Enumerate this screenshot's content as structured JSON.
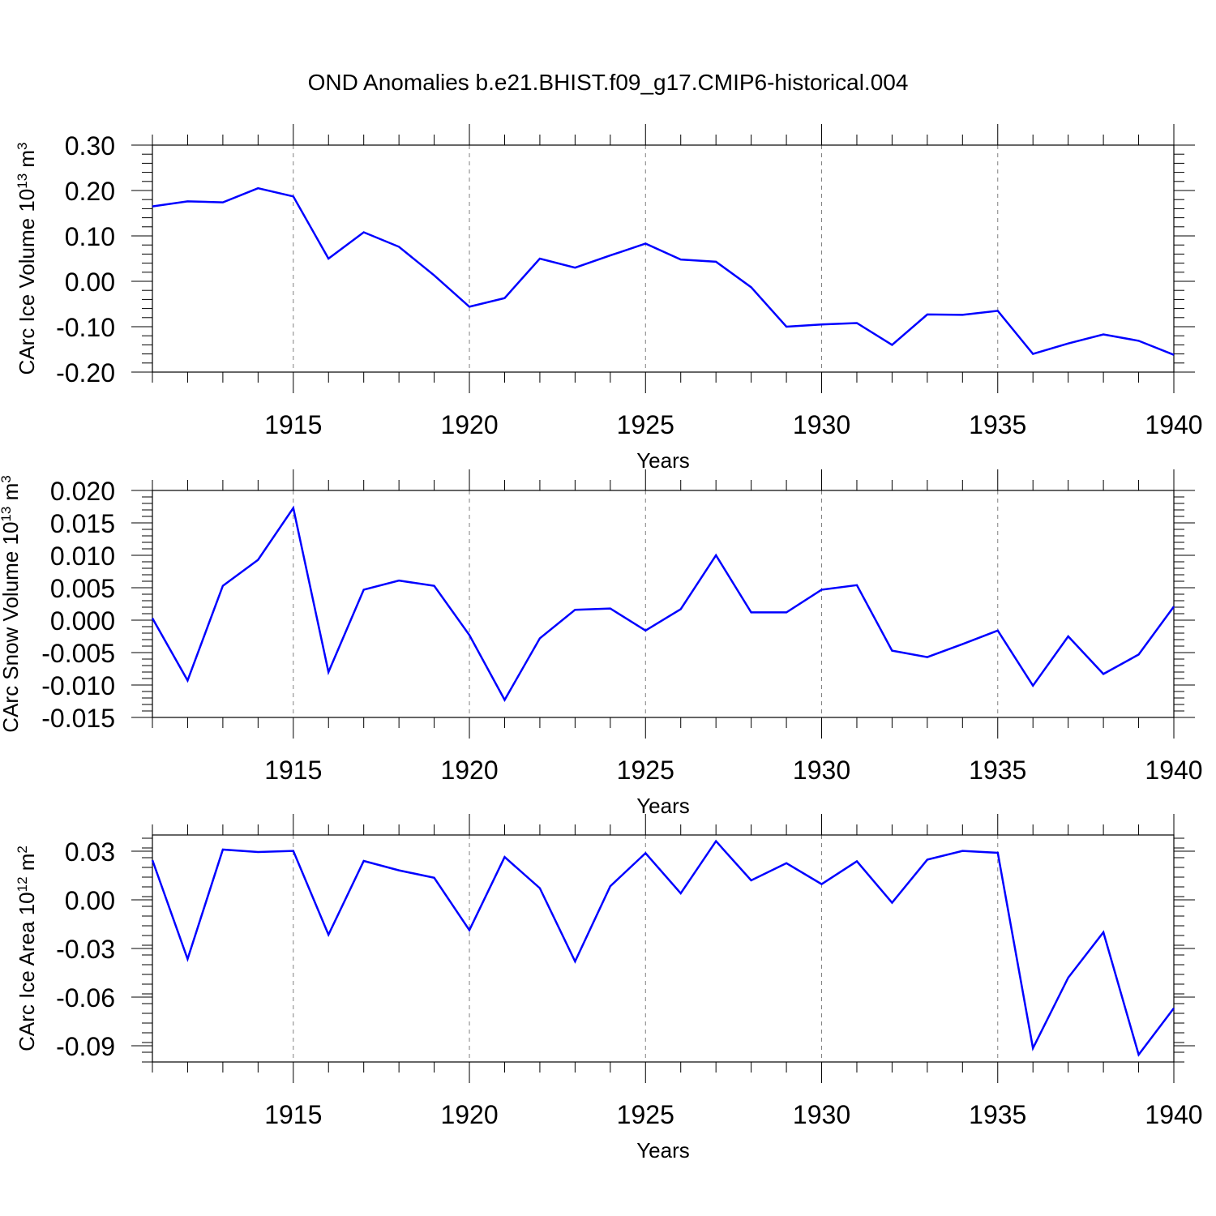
{
  "title": "OND Anomalies b.e21.BHIST.f09_g17.CMIP6-historical.004",
  "colors": {
    "series": "#0000ff",
    "axis": "#000000",
    "grid": "#808080"
  },
  "chart_data": [
    {
      "type": "line",
      "xlabel": "Years",
      "ylabel": {
        "base": "CArc Ice Volume 10",
        "sup": "13",
        "unit": " m",
        "unit_sup": "3"
      },
      "xlim": [
        1911,
        1940
      ],
      "ylim": [
        -0.2,
        0.3
      ],
      "xticks": [
        1915,
        1920,
        1925,
        1930,
        1935,
        1940
      ],
      "yticks": [
        -0.2,
        -0.1,
        0.0,
        0.1,
        0.2,
        0.3
      ],
      "ytick_labels": [
        "-0.20",
        "-0.10",
        "0.00",
        "0.10",
        "0.20",
        "0.30"
      ],
      "grid": "dashed vertical at major x ticks",
      "x": [
        1911,
        1912,
        1913,
        1914,
        1915,
        1916,
        1917,
        1918,
        1919,
        1920,
        1921,
        1922,
        1923,
        1924,
        1925,
        1926,
        1927,
        1928,
        1929,
        1930,
        1931,
        1932,
        1933,
        1934,
        1935,
        1936,
        1937,
        1938,
        1939,
        1940
      ],
      "values": [
        0.165,
        0.176,
        0.174,
        0.205,
        0.187,
        0.05,
        0.108,
        0.076,
        0.013,
        -0.056,
        -0.037,
        0.05,
        0.03,
        0.057,
        0.083,
        0.048,
        0.043,
        -0.013,
        -0.1,
        -0.095,
        -0.092,
        -0.14,
        -0.073,
        -0.074,
        -0.065,
        -0.16,
        -0.137,
        -0.117,
        -0.131,
        -0.162
      ]
    },
    {
      "type": "line",
      "xlabel": "Years",
      "ylabel": {
        "base": "CArc Snow Volume 10",
        "sup": "13",
        "unit": " m",
        "unit_sup": "3"
      },
      "xlim": [
        1911,
        1940
      ],
      "ylim": [
        -0.015,
        0.02
      ],
      "xticks": [
        1915,
        1920,
        1925,
        1930,
        1935,
        1940
      ],
      "yticks": [
        -0.015,
        -0.01,
        -0.005,
        0.0,
        0.005,
        0.01,
        0.015,
        0.02
      ],
      "ytick_labels": [
        "-0.015",
        "-0.010",
        "-0.005",
        "0.000",
        "0.005",
        "0.010",
        "0.015",
        "0.020"
      ],
      "grid": "dashed vertical at major x ticks",
      "x": [
        1911,
        1912,
        1913,
        1914,
        1915,
        1916,
        1917,
        1918,
        1919,
        1920,
        1921,
        1922,
        1923,
        1924,
        1925,
        1926,
        1927,
        1928,
        1929,
        1930,
        1931,
        1932,
        1933,
        1934,
        1935,
        1936,
        1937,
        1938,
        1939,
        1940
      ],
      "values": [
        0.0003,
        -0.0093,
        0.0053,
        0.0093,
        0.0173,
        -0.008,
        0.0047,
        0.0061,
        0.0053,
        -0.0023,
        -0.0123,
        -0.0028,
        0.0016,
        0.0018,
        -0.0016,
        0.0017,
        0.01,
        0.0012,
        0.0012,
        0.0047,
        0.0054,
        -0.0047,
        -0.0057,
        -0.0037,
        -0.0016,
        -0.0101,
        -0.0025,
        -0.0083,
        -0.0053,
        0.0021
      ]
    },
    {
      "type": "line",
      "xlabel": "Years",
      "ylabel": {
        "base": "CArc Ice Area 10",
        "sup": "12",
        "unit": " m",
        "unit_sup": "2"
      },
      "xlim": [
        1911,
        1940
      ],
      "ylim": [
        -0.1,
        0.04
      ],
      "xticks": [
        1915,
        1920,
        1925,
        1930,
        1935,
        1940
      ],
      "yticks": [
        -0.09,
        -0.06,
        -0.03,
        0.0,
        0.03
      ],
      "ytick_labels": [
        "-0.09",
        "-0.06",
        "-0.03",
        "0.00",
        "0.03"
      ],
      "grid": "dashed vertical at major x ticks",
      "x": [
        1911,
        1912,
        1913,
        1914,
        1915,
        1916,
        1917,
        1918,
        1919,
        1920,
        1921,
        1922,
        1923,
        1924,
        1925,
        1926,
        1927,
        1928,
        1929,
        1930,
        1931,
        1932,
        1933,
        1934,
        1935,
        1936,
        1937,
        1938,
        1939,
        1940
      ],
      "values": [
        0.0245,
        -0.0365,
        0.031,
        0.0295,
        0.0302,
        -0.0215,
        0.024,
        0.0182,
        0.0136,
        -0.0187,
        0.0264,
        0.0072,
        -0.038,
        0.0084,
        0.0288,
        0.004,
        0.0362,
        0.012,
        0.0226,
        0.0097,
        0.0238,
        -0.0018,
        0.0248,
        0.0302,
        0.029,
        -0.0915,
        -0.048,
        -0.02,
        -0.0955,
        -0.0668
      ]
    }
  ]
}
